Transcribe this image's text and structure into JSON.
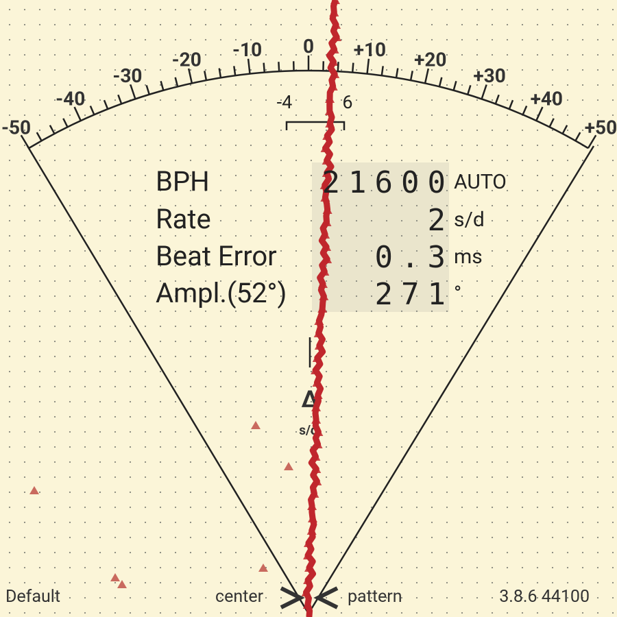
{
  "scale": {
    "labels": [
      "-50",
      "-40",
      "-30",
      "-20",
      "-10",
      "0",
      "+10",
      "+20",
      "+30",
      "+40",
      "+50"
    ],
    "inner_labels": [
      "-4",
      "6"
    ]
  },
  "readings": [
    {
      "label": "BPH",
      "value": "21600",
      "unit": "AUTO"
    },
    {
      "label": "Rate",
      "value": "2",
      "unit": "s/d"
    },
    {
      "label": "Beat Error",
      "value": "0.3",
      "unit": "ms"
    },
    {
      "label": "Ampl.(52°)",
      "value": "271",
      "unit": "°"
    }
  ],
  "delta": {
    "symbol": "Δ",
    "unit": "s/d"
  },
  "footer": {
    "profile": "Default",
    "left_button": "center",
    "right_button": "pattern",
    "version": "3.8.6 44100"
  }
}
